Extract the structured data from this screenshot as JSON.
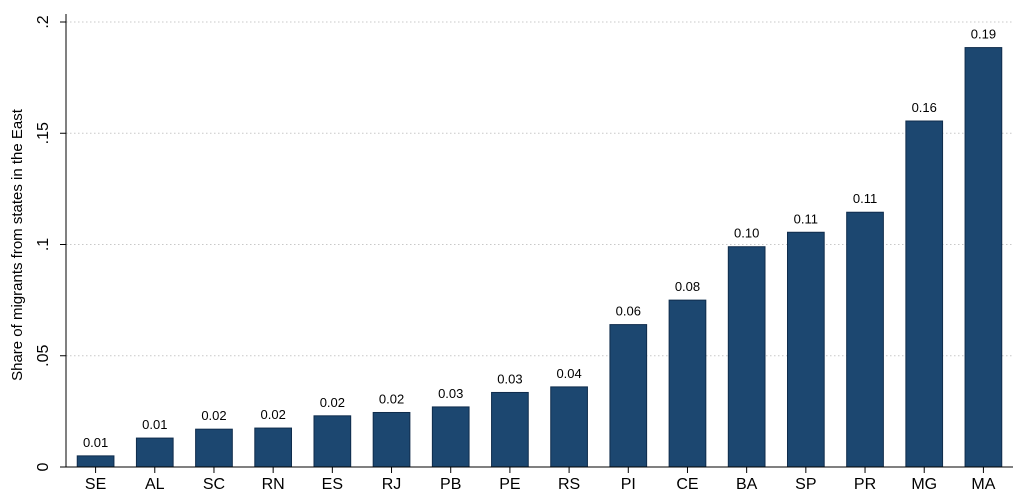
{
  "chart_data": {
    "type": "bar",
    "categories": [
      "SE",
      "AL",
      "SC",
      "RN",
      "ES",
      "RJ",
      "PB",
      "PE",
      "RS",
      "PI",
      "CE",
      "BA",
      "SP",
      "PR",
      "MG",
      "MA"
    ],
    "values": [
      0.005,
      0.013,
      0.017,
      0.0175,
      0.023,
      0.0245,
      0.027,
      0.0335,
      0.036,
      0.064,
      0.075,
      0.099,
      0.1055,
      0.1145,
      0.1555,
      0.1885
    ],
    "data_labels": [
      "0.01",
      "0.01",
      "0.02",
      "0.02",
      "0.02",
      "0.02",
      "0.03",
      "0.03",
      "0.04",
      "0.06",
      "0.08",
      "0.10",
      "0.11",
      "0.11",
      "0.16",
      "0.19"
    ],
    "title": "",
    "xlabel": "",
    "ylabel": "Share of migrants from states in the East",
    "ylim": [
      0,
      0.2
    ],
    "yticks": [
      0,
      0.05,
      0.1,
      0.15,
      0.2
    ],
    "ytick_labels": [
      "0",
      ".05",
      ".1",
      ".15",
      ".2"
    ],
    "grid": true,
    "bar_color": "#1c4770"
  }
}
